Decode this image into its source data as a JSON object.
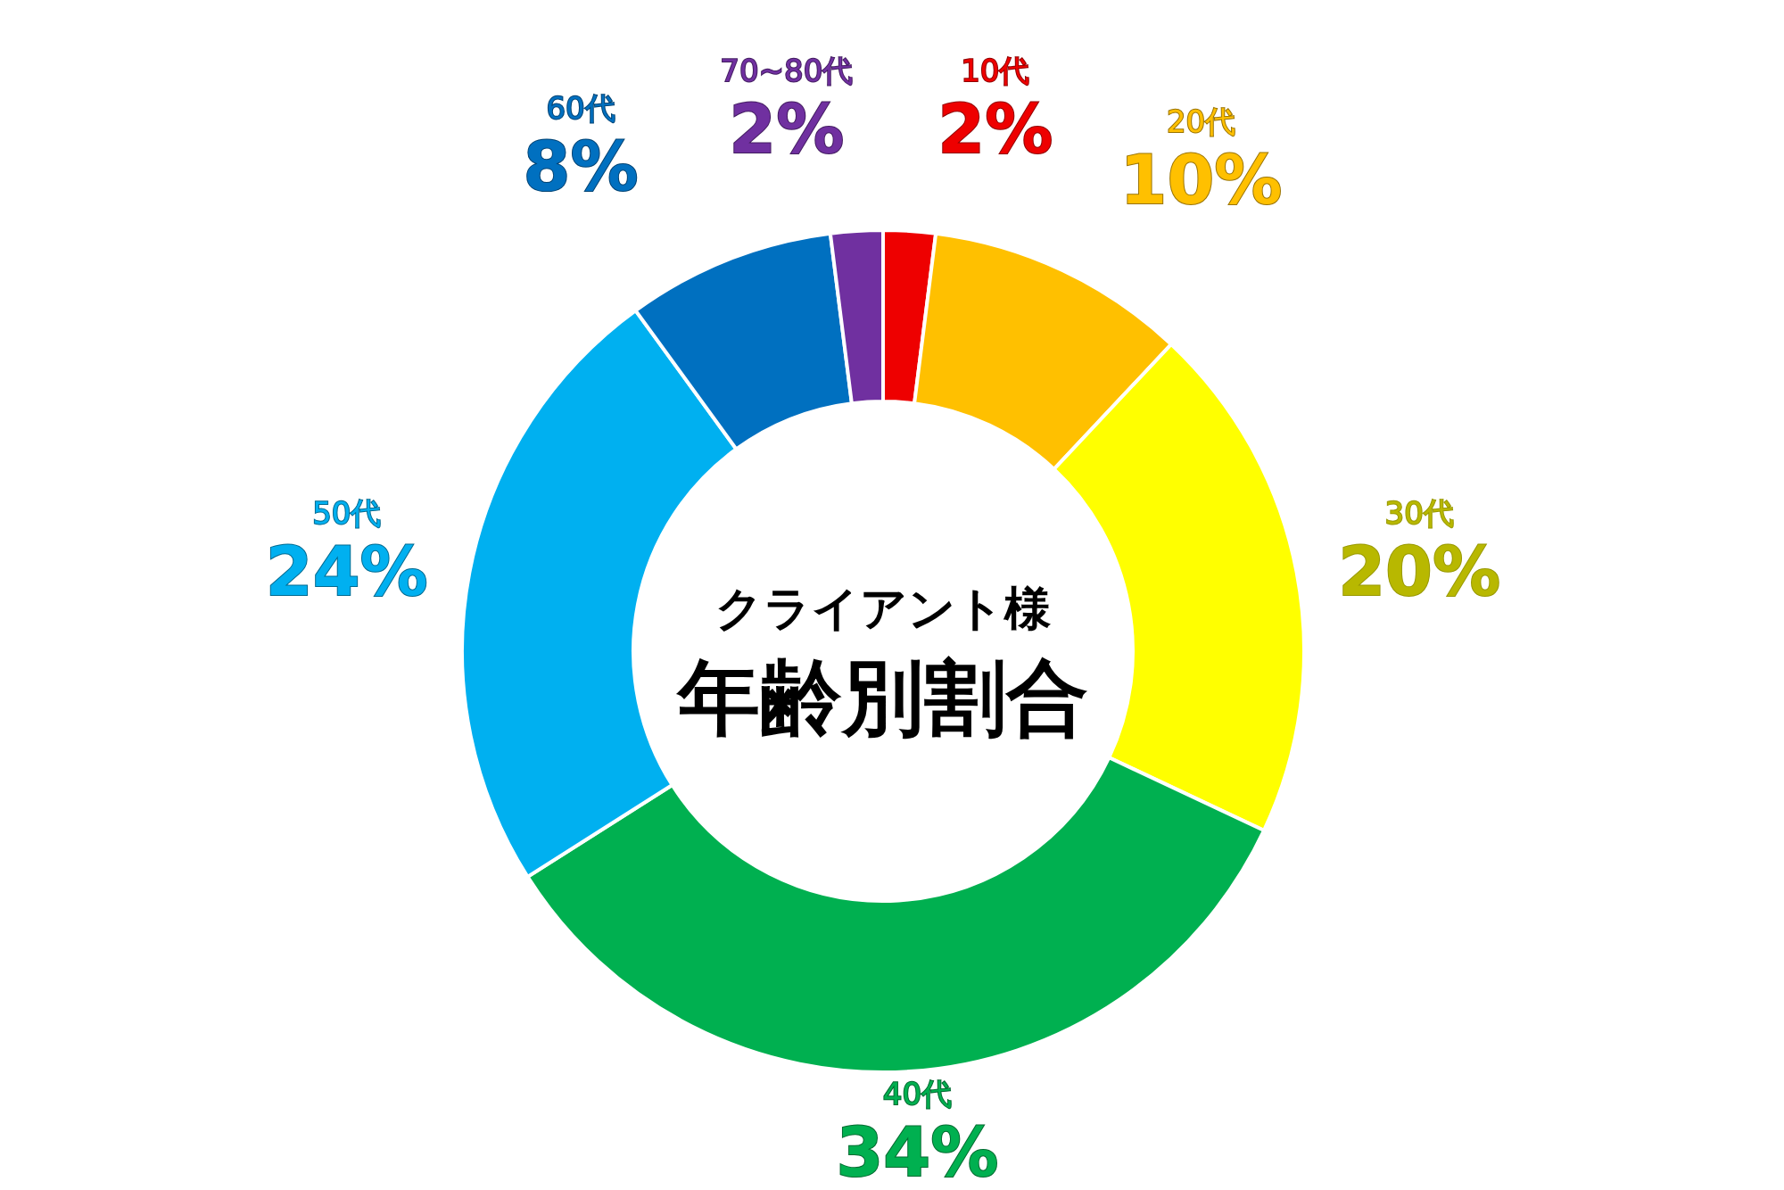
{
  "chart_data": {
    "type": "donut",
    "title": "年齢別割合",
    "subtitle": "クライアント様",
    "categories": [
      "10代",
      "20代",
      "30代",
      "40代",
      "50代",
      "60代",
      "70~80代"
    ],
    "values": [
      2,
      10,
      20,
      34,
      24,
      8,
      2
    ],
    "value_labels": [
      "2%",
      "10%",
      "20%",
      "34%",
      "24%",
      "8%",
      "2%"
    ],
    "colors": [
      "#ee0000",
      "#ffc000",
      "#ffff00",
      "#00b050",
      "#00b0f0",
      "#0070c0",
      "#7030a0"
    ]
  }
}
